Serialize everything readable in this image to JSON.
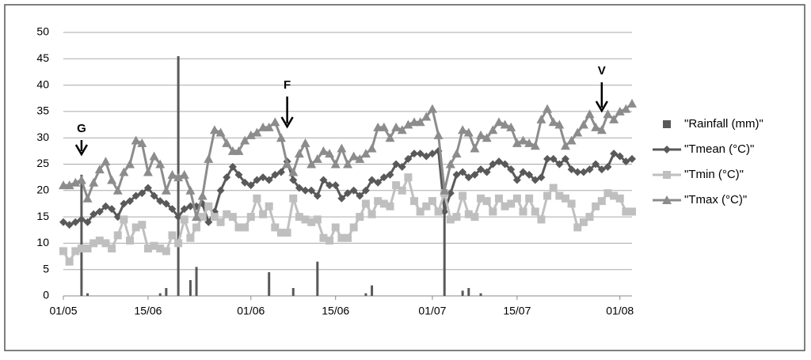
{
  "chart_data": {
    "type": "line",
    "categories": [
      "01/05",
      null,
      null,
      null,
      null,
      null,
      null,
      null,
      null,
      null,
      null,
      null,
      null,
      null,
      "15/06",
      null,
      null,
      null,
      null,
      null,
      null,
      null,
      null,
      null,
      null,
      null,
      null,
      null,
      null,
      null,
      null,
      "01/06",
      null,
      null,
      null,
      null,
      null,
      null,
      null,
      null,
      null,
      null,
      null,
      null,
      null,
      "15/06",
      null,
      null,
      null,
      null,
      null,
      null,
      null,
      null,
      null,
      null,
      null,
      null,
      null,
      null,
      null,
      "01/07",
      null,
      null,
      null,
      null,
      null,
      null,
      null,
      null,
      null,
      null,
      null,
      null,
      null,
      "15/07",
      null,
      null,
      null,
      null,
      null,
      null,
      null,
      null,
      null,
      null,
      null,
      null,
      null,
      null,
      null,
      null,
      "01/08",
      null,
      null
    ],
    "series": [
      {
        "name": "\"Rainfall (mm)\"",
        "type": "bar",
        "color": "#595959",
        "values": [
          0,
          0,
          0,
          23,
          0.5,
          0,
          0,
          0,
          0,
          0,
          0,
          0,
          0,
          0,
          0,
          0,
          0.5,
          1.5,
          0,
          45.5,
          0,
          3,
          5.5,
          0,
          0,
          0,
          0,
          0,
          0,
          0,
          0,
          0,
          0,
          0,
          4.5,
          0,
          0,
          0,
          1.5,
          0,
          0,
          0,
          6.5,
          0,
          0,
          0,
          0,
          0,
          0,
          0,
          0.5,
          2,
          0,
          0,
          0,
          0,
          0,
          0,
          0,
          0,
          0,
          0,
          0,
          20,
          0,
          0,
          1,
          1.5,
          0,
          0.5,
          0,
          0,
          0,
          0,
          0,
          0,
          0,
          0,
          0,
          0,
          0,
          0,
          0,
          0,
          0,
          0,
          0,
          0,
          0,
          0,
          0,
          0,
          0,
          0,
          0
        ]
      },
      {
        "name": "\"Tmean (°C)\"",
        "type": "line",
        "marker": "diamond",
        "color": "#595959",
        "values": [
          14,
          13.5,
          14,
          14.5,
          14,
          15.5,
          16,
          17,
          16.5,
          15,
          17.5,
          18,
          19,
          19.5,
          20.5,
          19,
          18,
          17.5,
          16.5,
          15,
          16.5,
          17,
          17,
          17.5,
          14,
          16,
          20,
          22.5,
          24.5,
          23,
          21.5,
          21,
          22,
          22.5,
          22,
          23,
          23.5,
          25.5,
          22,
          20.5,
          20,
          20,
          19,
          22,
          21,
          21,
          18.5,
          19.5,
          20,
          19,
          20,
          22,
          21.5,
          22.5,
          23,
          25,
          24.5,
          26,
          27,
          27,
          26.5,
          27,
          27.5,
          16,
          19.5,
          23,
          23.5,
          22.5,
          23,
          24,
          23.5,
          25,
          25.5,
          25,
          24,
          22,
          23.5,
          23,
          22,
          22.5,
          26,
          26,
          25,
          26,
          24,
          23.5,
          23.5,
          24,
          25,
          24,
          24.5,
          27,
          26.5,
          25.5,
          26
        ]
      },
      {
        "name": "\"Tmin (°C)\"",
        "type": "line",
        "marker": "square",
        "color": "#bfbfbf",
        "values": [
          8.5,
          6.5,
          8.5,
          9,
          9,
          10,
          10.5,
          10,
          9,
          11.5,
          14.5,
          10.5,
          13,
          13.5,
          9,
          9.5,
          9,
          8.5,
          11.5,
          10,
          14.5,
          11,
          13,
          15,
          17,
          15,
          14,
          15.5,
          15,
          13,
          13,
          15,
          18.5,
          15.5,
          17,
          13,
          12,
          12,
          18.5,
          15,
          14.5,
          14,
          14.5,
          11,
          10.5,
          13,
          11,
          11,
          13,
          15,
          17.5,
          15.5,
          18,
          17.5,
          17,
          21,
          20,
          22.5,
          18,
          16,
          17,
          18,
          16,
          19.5,
          14.5,
          15,
          19,
          15.5,
          15,
          18.5,
          18,
          16,
          18.5,
          17,
          17.5,
          18.5,
          16,
          18.5,
          16,
          14.5,
          19,
          20.5,
          19,
          18.5,
          17.5,
          13,
          14,
          15,
          17,
          18,
          19.5,
          19,
          18.5,
          16,
          16
        ]
      },
      {
        "name": "\"Tmax (°C)\"",
        "type": "line",
        "marker": "triangle",
        "color": "#8c8c8c",
        "values": [
          21,
          21,
          21.5,
          22,
          18.5,
          21.5,
          24,
          25.5,
          22,
          20,
          23.5,
          25,
          29.5,
          29,
          23.5,
          26.5,
          25,
          20,
          23,
          22.5,
          23,
          20,
          15,
          19,
          26,
          31.5,
          31,
          29,
          27.5,
          27.5,
          29.5,
          30.5,
          31,
          32,
          32,
          33,
          30,
          25,
          23.5,
          27,
          29,
          25,
          26,
          27.5,
          27,
          25,
          28,
          25,
          26.5,
          26,
          27,
          28,
          32,
          32,
          30,
          32,
          31.5,
          32.5,
          33,
          33,
          34,
          35.5,
          30.5,
          20,
          25,
          27,
          31.5,
          31,
          28,
          30.5,
          30,
          31.5,
          33,
          32.5,
          32,
          29,
          29.5,
          29,
          28.5,
          33.5,
          35.5,
          33,
          32.5,
          28.5,
          29.5,
          31,
          32.5,
          34.5,
          32,
          31.5,
          34.5,
          33.5,
          35,
          35.5,
          36.5
        ]
      }
    ],
    "annotations": [
      "G",
      "F",
      "V"
    ],
    "ylim": [
      0,
      50
    ],
    "yticks": [
      0,
      5,
      10,
      15,
      20,
      25,
      30,
      35,
      40,
      45,
      50
    ],
    "grid": true,
    "legend": "right"
  }
}
